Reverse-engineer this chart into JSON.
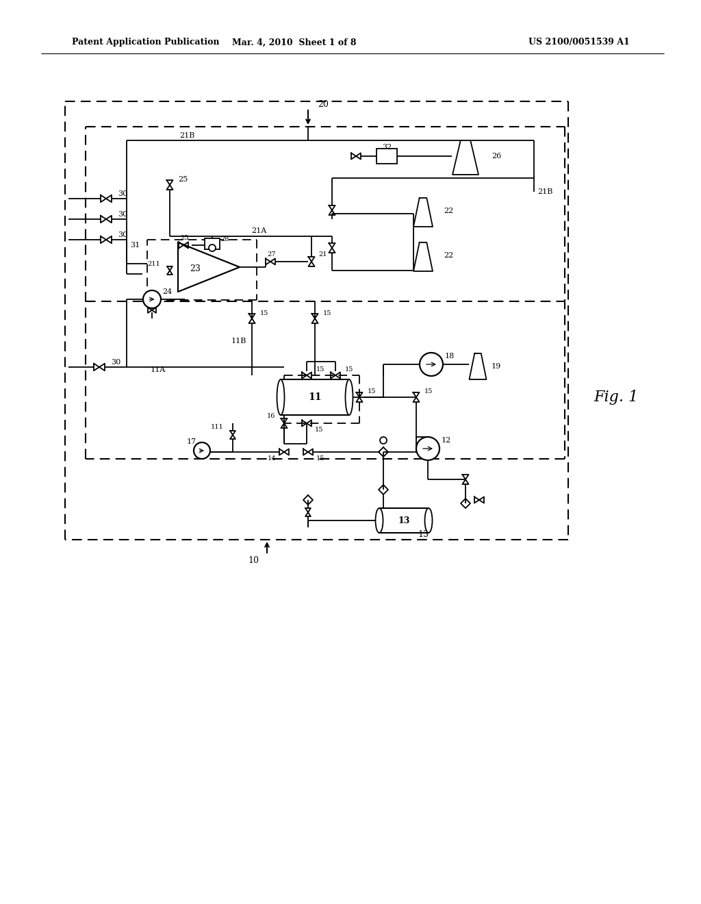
{
  "bg": "#ffffff",
  "lc": "#000000",
  "header_left": "Patent Application Publication",
  "header_mid": "Mar. 4, 2010  Sheet 1 of 8",
  "header_right": "US 2100/0051539 A1",
  "fig_label": "Fig. 1"
}
